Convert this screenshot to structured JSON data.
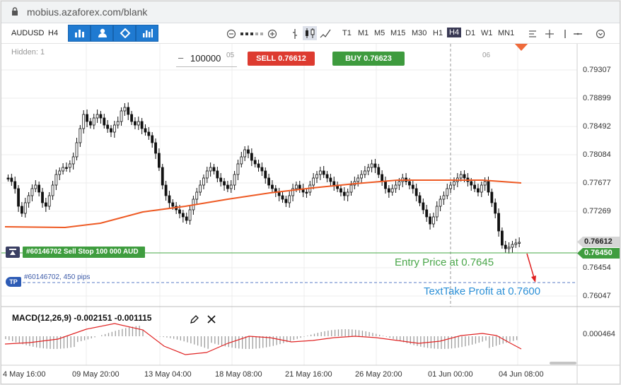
{
  "browser": {
    "url": "mobius.azaforex.com/blank"
  },
  "toolbar": {
    "symbol": "AUDUSD",
    "period": "H4",
    "timeframes": [
      "T1",
      "M1",
      "M5",
      "M15",
      "M30",
      "H1",
      "H4",
      "D1",
      "W1",
      "MN1"
    ],
    "active_timeframe": "H4"
  },
  "chart": {
    "hidden_label": "Hidden: 1",
    "quantity": "100000",
    "sell_label": "SELL",
    "sell_price": "0.76612",
    "buy_label": "BUY",
    "buy_price": "0.76623",
    "order_label": "#60146702 Sell Stop 100 000 AUD",
    "tp_badge": "TP",
    "tp_label": "#60146702, 450 pips",
    "entry_annotation": "Entry Price at 0.7645",
    "tp_annotation": "TextTake Profit at 0.7600",
    "period_marks": [
      "05",
      "06"
    ],
    "current_price": "0.76612",
    "order_price": "0.76450",
    "macd_label": "MACD(12,26,9) -0.002151 -0.001115",
    "macd_axis": "0.000464",
    "colors": {
      "sell": "#dd3b30",
      "buy": "#3e9b3e",
      "ma_line": "#ee5a24",
      "order": "#3f9d3f",
      "tp": "#2d5bb5"
    }
  },
  "chart_data": {
    "type": "candlestick",
    "y_ticks": [
      "0.79307",
      "0.78899",
      "0.78492",
      "0.78084",
      "0.77677",
      "0.77269",
      "0.76454",
      "0.76047"
    ],
    "x_ticks": [
      "4 May 16:00",
      "09 May 20:00",
      "13 May 04:00",
      "18 May 08:00",
      "21 May 16:00",
      "26 May 20:00",
      "01 Jun 00:00",
      "04 Jun 08:00"
    ],
    "ylim": [
      0.7588,
      0.7955
    ]
  }
}
